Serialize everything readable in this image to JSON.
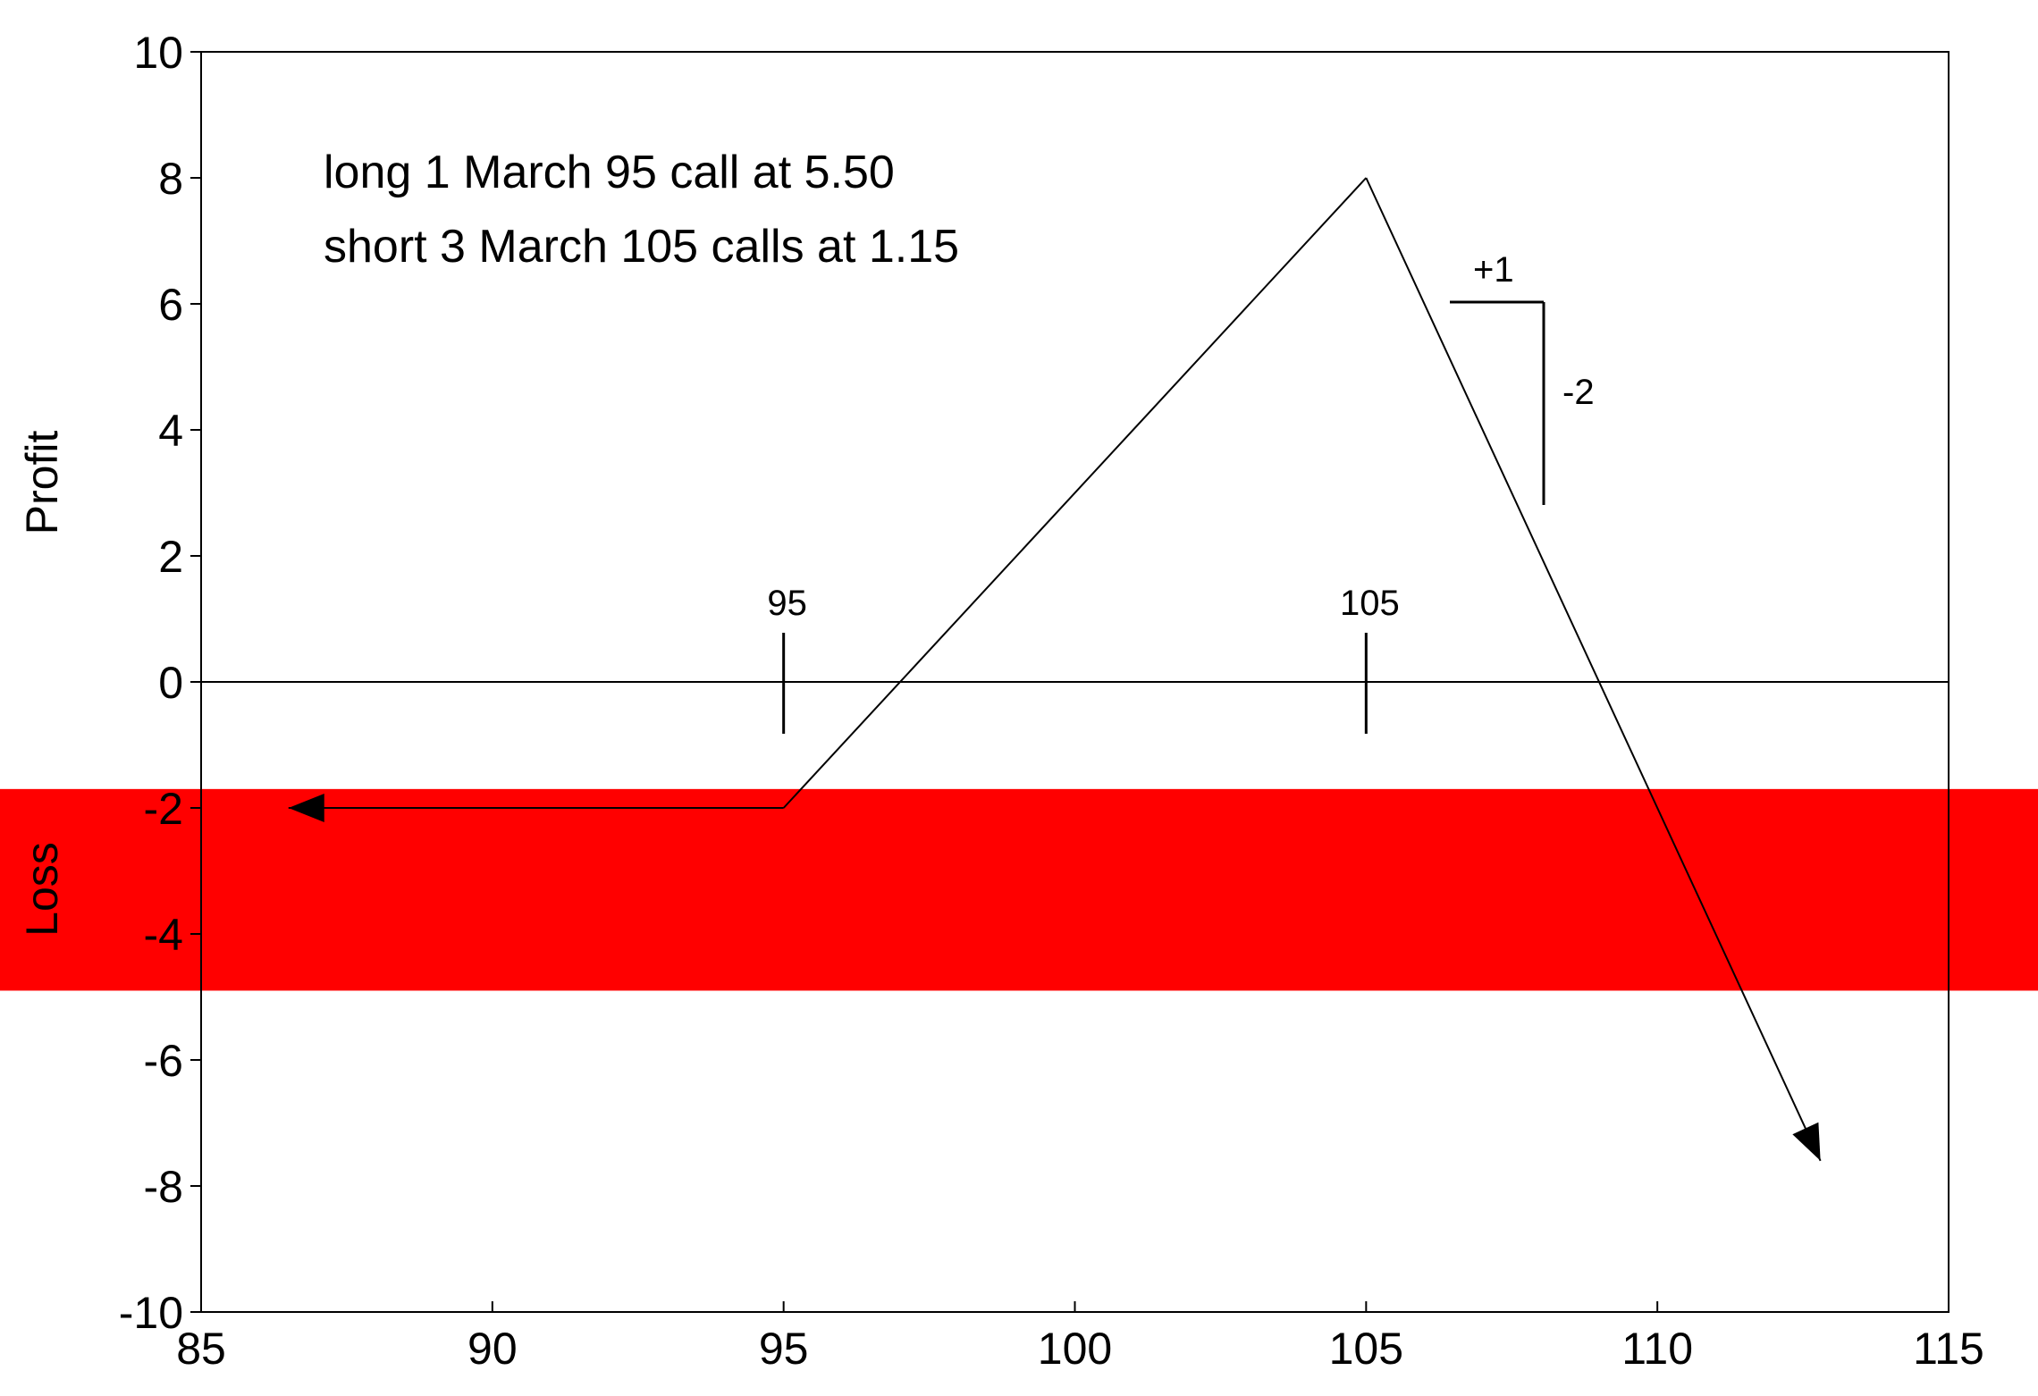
{
  "chart_data": {
    "type": "line",
    "title": "",
    "xlabel": "",
    "ylabel_top": "Profit",
    "ylabel_bottom": "Loss",
    "xlim": [
      85,
      115
    ],
    "ylim": [
      -10,
      10
    ],
    "xticks": [
      85,
      90,
      95,
      100,
      105,
      110,
      115
    ],
    "yticks": [
      10,
      8,
      6,
      4,
      2,
      0,
      -2,
      -4,
      -6,
      -8,
      -10
    ],
    "grid": false,
    "loss_band": {
      "y_from": -1.7,
      "y_to": -4.9,
      "color": "#ff0000"
    },
    "series": [
      {
        "x": [
          86.5,
          95,
          105,
          112.8
        ],
        "y": [
          -2,
          -2,
          8,
          -7.6
        ]
      }
    ],
    "annotations": {
      "legend_line1": "long 1 March 95 call at 5.50",
      "legend_line2": "short 3 March 105 calls at 1.15",
      "strike_marks": [
        {
          "x": 95,
          "label": "95"
        },
        {
          "x": 105,
          "label": "105"
        }
      ],
      "slope_run_label": "+1",
      "slope_rise_label": "-2"
    }
  }
}
